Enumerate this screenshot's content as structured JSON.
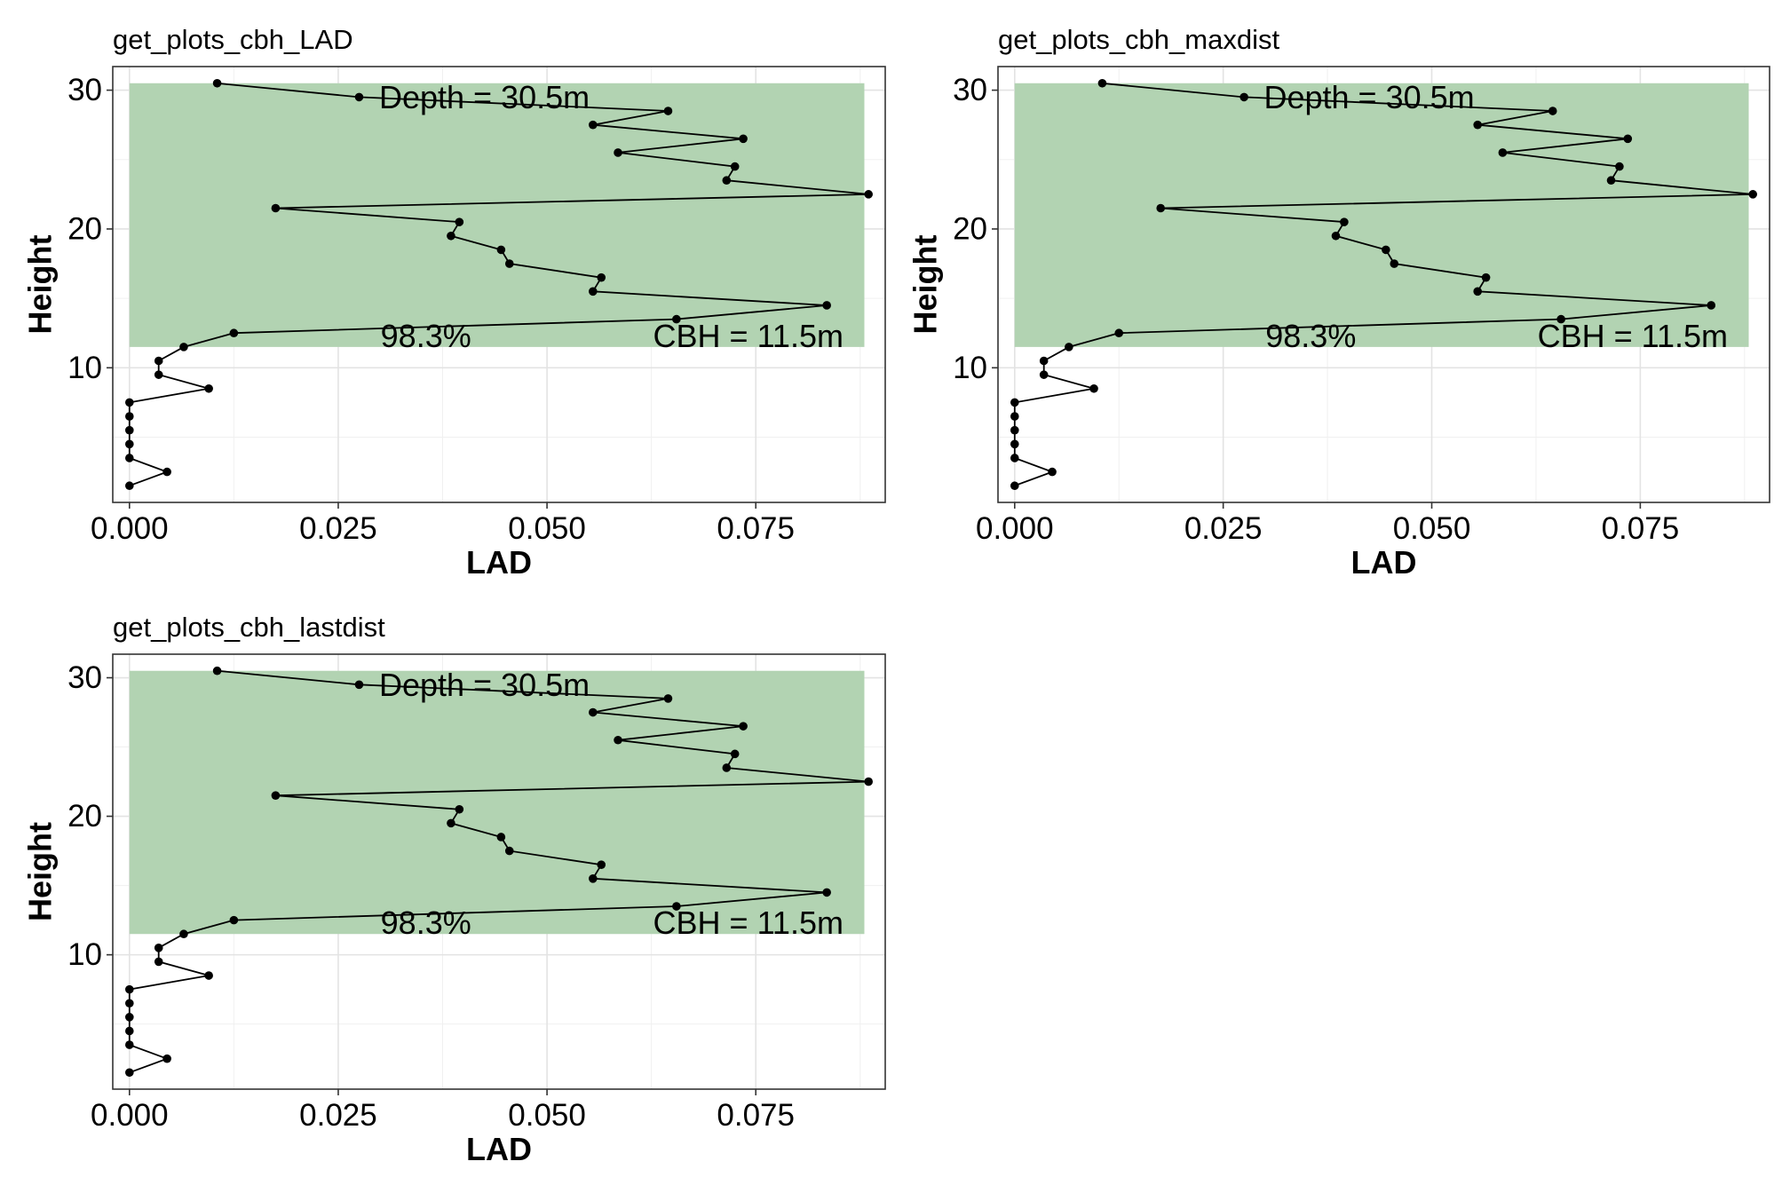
{
  "chart_data": [
    {
      "type": "line",
      "title": "get_plots_cbh_LAD",
      "xlabel": "LAD",
      "ylabel": "Height",
      "xlim": [
        -0.002,
        0.0905
      ],
      "ylim": [
        0.3,
        31.7
      ],
      "xticks": [
        0.0,
        0.025,
        0.05,
        0.075
      ],
      "xtick_labels": [
        "0.000",
        "0.025",
        "0.050",
        "0.075"
      ],
      "yticks": [
        10,
        20,
        30
      ],
      "ytick_labels": [
        "10",
        "20",
        "30"
      ],
      "grid": true,
      "legend": "none",
      "shaded_region": {
        "x": [
          0.0,
          0.088
        ],
        "y": [
          11.5,
          30.5
        ],
        "color": "#b2d3b2"
      },
      "annotations": [
        {
          "text": "Depth = 30.5m",
          "x": 0.0425,
          "y": 29.5
        },
        {
          "text": "98.3%",
          "x": 0.0355,
          "y": 12.3
        },
        {
          "text": "CBH = 11.5m",
          "x": 0.0855,
          "y": 12.3
        }
      ],
      "series": [
        {
          "x": [
            0.0,
            0.0045,
            0.0,
            0.0,
            0.0,
            0.0,
            0.0,
            0.0095,
            0.0035,
            0.0035,
            0.0065,
            0.0125,
            0.0655,
            0.0835,
            0.0555,
            0.0565,
            0.0455,
            0.0445,
            0.0385,
            0.0395,
            0.0175,
            0.0885,
            0.0715,
            0.0725,
            0.0585,
            0.0735,
            0.0555,
            0.0645,
            0.0275,
            0.0105
          ],
          "y": [
            1.5,
            2.5,
            3.5,
            4.5,
            5.5,
            6.5,
            7.5,
            8.5,
            9.5,
            10.5,
            11.5,
            12.5,
            13.5,
            14.5,
            15.5,
            16.5,
            17.5,
            18.5,
            19.5,
            20.5,
            21.5,
            22.5,
            23.5,
            24.5,
            25.5,
            26.5,
            27.5,
            28.5,
            29.5,
            30.5
          ]
        }
      ]
    },
    {
      "type": "line",
      "title": "get_plots_cbh_maxdist",
      "xlabel": "LAD",
      "ylabel": "Height",
      "xlim": [
        -0.002,
        0.0905
      ],
      "ylim": [
        0.3,
        31.7
      ],
      "xticks": [
        0.0,
        0.025,
        0.05,
        0.075
      ],
      "xtick_labels": [
        "0.000",
        "0.025",
        "0.050",
        "0.075"
      ],
      "yticks": [
        10,
        20,
        30
      ],
      "ytick_labels": [
        "10",
        "20",
        "30"
      ],
      "grid": true,
      "legend": "none",
      "shaded_region": {
        "x": [
          0.0,
          0.088
        ],
        "y": [
          11.5,
          30.5
        ],
        "color": "#b2d3b2"
      },
      "annotations": [
        {
          "text": "Depth = 30.5m",
          "x": 0.0425,
          "y": 29.5
        },
        {
          "text": "98.3%",
          "x": 0.0355,
          "y": 12.3
        },
        {
          "text": "CBH = 11.5m",
          "x": 0.0855,
          "y": 12.3
        }
      ],
      "series": [
        {
          "x": [
            0.0,
            0.0045,
            0.0,
            0.0,
            0.0,
            0.0,
            0.0,
            0.0095,
            0.0035,
            0.0035,
            0.0065,
            0.0125,
            0.0655,
            0.0835,
            0.0555,
            0.0565,
            0.0455,
            0.0445,
            0.0385,
            0.0395,
            0.0175,
            0.0885,
            0.0715,
            0.0725,
            0.0585,
            0.0735,
            0.0555,
            0.0645,
            0.0275,
            0.0105
          ],
          "y": [
            1.5,
            2.5,
            3.5,
            4.5,
            5.5,
            6.5,
            7.5,
            8.5,
            9.5,
            10.5,
            11.5,
            12.5,
            13.5,
            14.5,
            15.5,
            16.5,
            17.5,
            18.5,
            19.5,
            20.5,
            21.5,
            22.5,
            23.5,
            24.5,
            25.5,
            26.5,
            27.5,
            28.5,
            29.5,
            30.5
          ]
        }
      ]
    },
    {
      "type": "line",
      "title": "get_plots_cbh_lastdist",
      "xlabel": "LAD",
      "ylabel": "Height",
      "xlim": [
        -0.002,
        0.0905
      ],
      "ylim": [
        0.3,
        31.7
      ],
      "xticks": [
        0.0,
        0.025,
        0.05,
        0.075
      ],
      "xtick_labels": [
        "0.000",
        "0.025",
        "0.050",
        "0.075"
      ],
      "yticks": [
        10,
        20,
        30
      ],
      "ytick_labels": [
        "10",
        "20",
        "30"
      ],
      "grid": true,
      "legend": "none",
      "shaded_region": {
        "x": [
          0.0,
          0.088
        ],
        "y": [
          11.5,
          30.5
        ],
        "color": "#b2d3b2"
      },
      "annotations": [
        {
          "text": "Depth = 30.5m",
          "x": 0.0425,
          "y": 29.5
        },
        {
          "text": "98.3%",
          "x": 0.0355,
          "y": 12.3
        },
        {
          "text": "CBH = 11.5m",
          "x": 0.0855,
          "y": 12.3
        }
      ],
      "series": [
        {
          "x": [
            0.0,
            0.0045,
            0.0,
            0.0,
            0.0,
            0.0,
            0.0,
            0.0095,
            0.0035,
            0.0035,
            0.0065,
            0.0125,
            0.0655,
            0.0835,
            0.0555,
            0.0565,
            0.0455,
            0.0445,
            0.0385,
            0.0395,
            0.0175,
            0.0885,
            0.0715,
            0.0725,
            0.0585,
            0.0735,
            0.0555,
            0.0645,
            0.0275,
            0.0105
          ],
          "y": [
            1.5,
            2.5,
            3.5,
            4.5,
            5.5,
            6.5,
            7.5,
            8.5,
            9.5,
            10.5,
            11.5,
            12.5,
            13.5,
            14.5,
            15.5,
            16.5,
            17.5,
            18.5,
            19.5,
            20.5,
            21.5,
            22.5,
            23.5,
            24.5,
            25.5,
            26.5,
            27.5,
            28.5,
            29.5,
            30.5
          ]
        }
      ]
    }
  ]
}
